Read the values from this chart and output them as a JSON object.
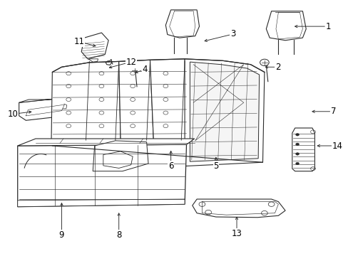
{
  "background_color": "#ffffff",
  "line_color": "#2a2a2a",
  "label_color": "#000000",
  "font_size": 8.5,
  "callouts": {
    "1": [
      0.945,
      0.9,
      0.84,
      0.9
    ],
    "2": [
      0.8,
      0.74,
      0.755,
      0.74
    ],
    "3": [
      0.67,
      0.87,
      0.58,
      0.84
    ],
    "4": [
      0.415,
      0.73,
      0.38,
      0.715
    ],
    "5": [
      0.62,
      0.35,
      0.62,
      0.395
    ],
    "6": [
      0.49,
      0.35,
      0.49,
      0.42
    ],
    "7": [
      0.96,
      0.565,
      0.89,
      0.565
    ],
    "8": [
      0.34,
      0.08,
      0.34,
      0.175
    ],
    "9": [
      0.175,
      0.08,
      0.175,
      0.215
    ],
    "10": [
      0.035,
      0.555,
      0.095,
      0.565
    ],
    "11": [
      0.225,
      0.84,
      0.28,
      0.82
    ],
    "12": [
      0.375,
      0.76,
      0.305,
      0.735
    ],
    "13": [
      0.68,
      0.085,
      0.68,
      0.16
    ],
    "14": [
      0.97,
      0.43,
      0.905,
      0.43
    ]
  }
}
